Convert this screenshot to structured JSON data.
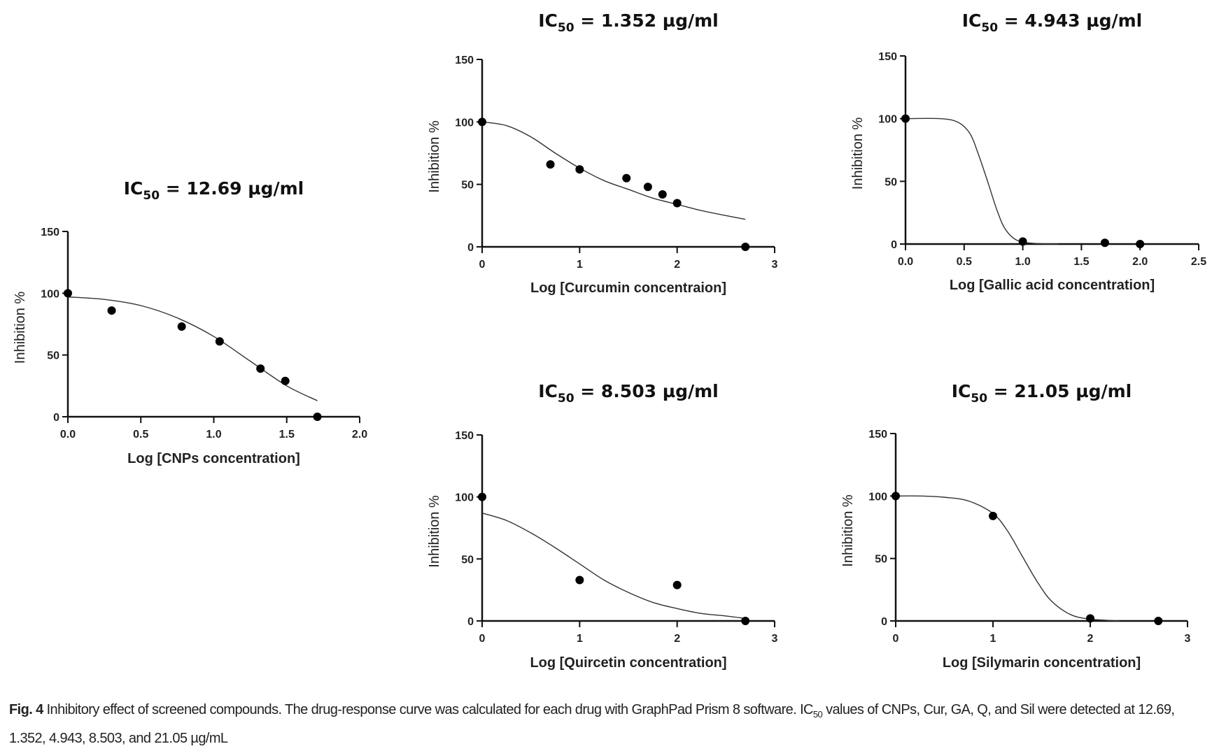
{
  "chart_data": [
    {
      "type": "scatter",
      "title": {
        "prefix": "IC",
        "sub": "50",
        "value": " = 12.69 µg/ml"
      },
      "xlabel": "Log [CNPs concentration]",
      "ylabel": "Inhibition %",
      "xlim": [
        0,
        2.0
      ],
      "ylim": [
        0,
        150
      ],
      "xticks": [
        0,
        0.5,
        1.0,
        1.5,
        2.0
      ],
      "xtick_labels": [
        "0.0",
        "0.5",
        "1.0",
        "1.5",
        "2.0"
      ],
      "yticks": [
        0,
        50,
        100,
        150
      ],
      "ytick_labels": [
        "0",
        "50",
        "100",
        "150"
      ],
      "points": [
        [
          0,
          100
        ],
        [
          0.3,
          86
        ],
        [
          0.78,
          73
        ],
        [
          1.04,
          61
        ],
        [
          1.32,
          39
        ],
        [
          1.49,
          29
        ],
        [
          1.71,
          0
        ]
      ],
      "fit_curve": [
        [
          0,
          97
        ],
        [
          0.25,
          95
        ],
        [
          0.5,
          90
        ],
        [
          0.75,
          80
        ],
        [
          1.0,
          65
        ],
        [
          1.25,
          45
        ],
        [
          1.5,
          25
        ],
        [
          1.71,
          13
        ]
      ]
    },
    {
      "type": "scatter",
      "title": {
        "prefix": "IC",
        "sub": "50",
        "value": " = 1.352 µg/ml"
      },
      "xlabel": "Log [Curcumin concentraion]",
      "ylabel": "Inhibition %",
      "xlim": [
        0,
        3
      ],
      "ylim": [
        0,
        150
      ],
      "xticks": [
        0,
        1,
        2,
        3
      ],
      "xtick_labels": [
        "0",
        "1",
        "2",
        "3"
      ],
      "yticks": [
        0,
        50,
        100,
        150
      ],
      "ytick_labels": [
        "0",
        "50",
        "100",
        "150"
      ],
      "points": [
        [
          0,
          100
        ],
        [
          0.7,
          66
        ],
        [
          1.0,
          62
        ],
        [
          1.48,
          55
        ],
        [
          1.7,
          48
        ],
        [
          1.85,
          42
        ],
        [
          2.0,
          35
        ],
        [
          2.7,
          0
        ]
      ],
      "fit_curve": [
        [
          0,
          100
        ],
        [
          0.25,
          97
        ],
        [
          0.5,
          88
        ],
        [
          0.75,
          75
        ],
        [
          1.0,
          63
        ],
        [
          1.25,
          53
        ],
        [
          1.5,
          46
        ],
        [
          1.75,
          39
        ],
        [
          2.0,
          34
        ],
        [
          2.25,
          29
        ],
        [
          2.5,
          25
        ],
        [
          2.7,
          22
        ]
      ]
    },
    {
      "type": "scatter",
      "title": {
        "prefix": "IC",
        "sub": "50",
        "value": " = 4.943 µg/ml"
      },
      "xlabel": "Log [Gallic acid concentration]",
      "ylabel": "Inhibition %",
      "xlim": [
        0,
        2.5
      ],
      "ylim": [
        0,
        150
      ],
      "xticks": [
        0,
        0.5,
        1.0,
        1.5,
        2.0,
        2.5
      ],
      "xtick_labels": [
        "0.0",
        "0.5",
        "1.0",
        "1.5",
        "2.0",
        "2.5"
      ],
      "yticks": [
        0,
        50,
        100,
        150
      ],
      "ytick_labels": [
        "0",
        "50",
        "100",
        "150"
      ],
      "points": [
        [
          0,
          100
        ],
        [
          1.0,
          2
        ],
        [
          1.7,
          1
        ],
        [
          2.0,
          0
        ]
      ],
      "fit_curve": [
        [
          0,
          100
        ],
        [
          0.3,
          100
        ],
        [
          0.45,
          97
        ],
        [
          0.55,
          88
        ],
        [
          0.62,
          72
        ],
        [
          0.7,
          50
        ],
        [
          0.78,
          27
        ],
        [
          0.85,
          12
        ],
        [
          0.95,
          3
        ],
        [
          1.1,
          0.5
        ],
        [
          1.3,
          0
        ]
      ]
    },
    {
      "type": "scatter",
      "title": {
        "prefix": "IC",
        "sub": "50",
        "value": " = 8.503 µg/ml"
      },
      "xlabel": "Log [Quircetin concentration]",
      "ylabel": "Inhibition %",
      "xlim": [
        0,
        3
      ],
      "ylim": [
        0,
        150
      ],
      "xticks": [
        0,
        1,
        2,
        3
      ],
      "xtick_labels": [
        "0",
        "1",
        "2",
        "3"
      ],
      "yticks": [
        0,
        50,
        100,
        150
      ],
      "ytick_labels": [
        "0",
        "50",
        "100",
        "150"
      ],
      "points": [
        [
          0,
          100
        ],
        [
          1.0,
          33
        ],
        [
          2.0,
          29
        ],
        [
          2.7,
          0
        ]
      ],
      "fit_curve": [
        [
          0,
          87
        ],
        [
          0.25,
          81
        ],
        [
          0.5,
          71
        ],
        [
          0.75,
          59
        ],
        [
          1.0,
          46
        ],
        [
          1.25,
          33
        ],
        [
          1.5,
          23
        ],
        [
          1.75,
          15
        ],
        [
          2.0,
          10
        ],
        [
          2.25,
          6
        ],
        [
          2.5,
          4
        ],
        [
          2.7,
          2
        ]
      ]
    },
    {
      "type": "scatter",
      "title": {
        "prefix": "IC",
        "sub": "50",
        "value": " = 21.05 µg/ml"
      },
      "xlabel": "Log [Silymarin concentration]",
      "ylabel": "Inhibition %",
      "xlim": [
        0,
        3
      ],
      "ylim": [
        0,
        150
      ],
      "xticks": [
        0,
        1,
        2,
        3
      ],
      "xtick_labels": [
        "0",
        "1",
        "2",
        "3"
      ],
      "yticks": [
        0,
        50,
        100,
        150
      ],
      "ytick_labels": [
        "0",
        "50",
        "100",
        "150"
      ],
      "points": [
        [
          0,
          100
        ],
        [
          1.0,
          84
        ],
        [
          2.0,
          2
        ],
        [
          2.7,
          0
        ]
      ],
      "fit_curve": [
        [
          0,
          100
        ],
        [
          0.25,
          100
        ],
        [
          0.5,
          99
        ],
        [
          0.75,
          96
        ],
        [
          1.0,
          86
        ],
        [
          1.15,
          72
        ],
        [
          1.3,
          52
        ],
        [
          1.45,
          32
        ],
        [
          1.6,
          16
        ],
        [
          1.8,
          5
        ],
        [
          2.0,
          1.5
        ],
        [
          2.3,
          0
        ]
      ]
    }
  ],
  "caption": {
    "label": "Fig. 4",
    "text_1": "  Inhibitory effect of screened compounds. The drug-response curve was calculated for each drug with GraphPad Prism 8 software. IC",
    "sub": "50",
    "text_2": " values of CNPs, Cur, GA, Q, and Sil were detected at 12.69, 1.352, 4.943, 8.503, and 21.05 µg/mL"
  }
}
